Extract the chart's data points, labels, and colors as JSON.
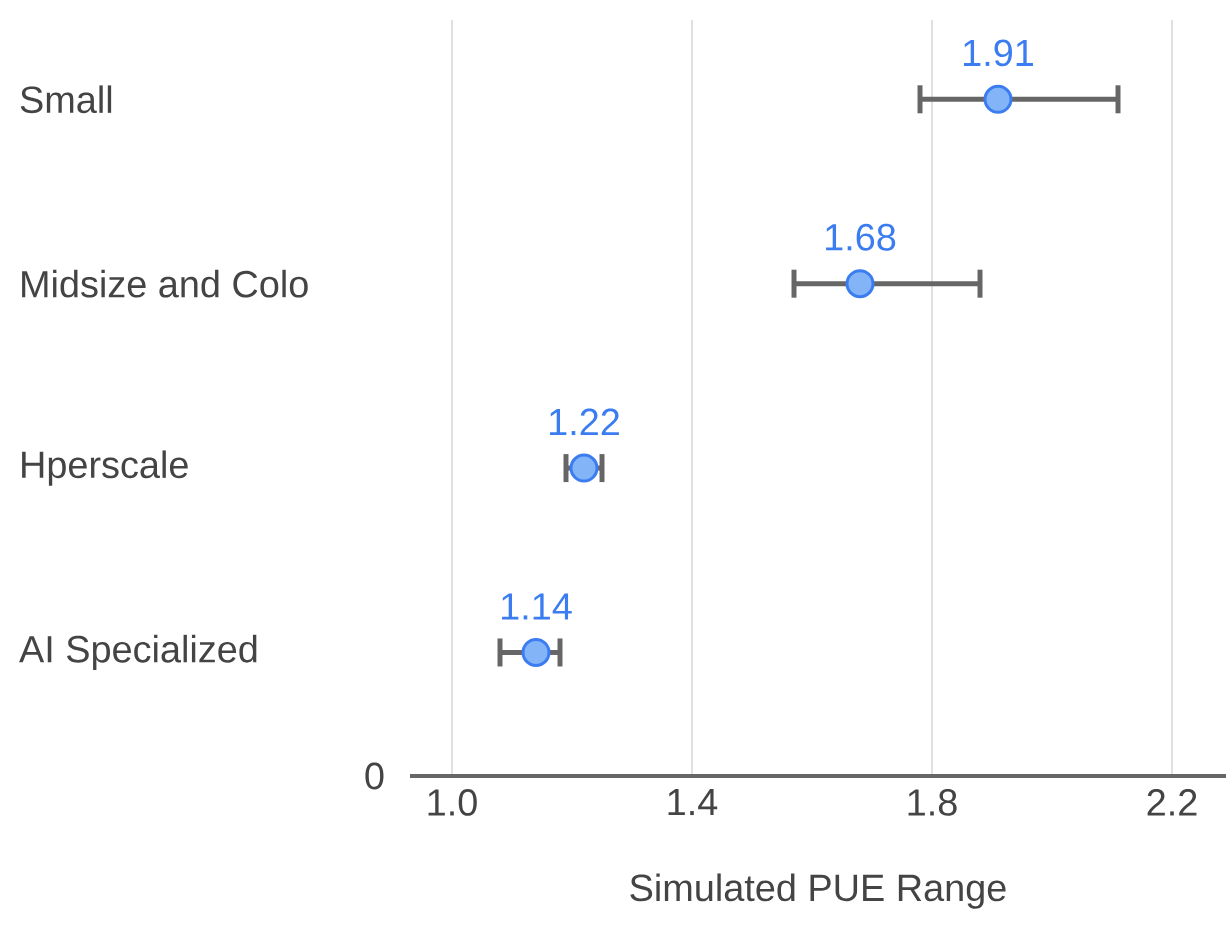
{
  "chart_data": {
    "type": "scatter",
    "orientation": "horizontal",
    "xlabel": "Simulated PUE Range",
    "categories": [
      "Small",
      "Midsize and Colo",
      "Hperscale",
      "AI Specialized"
    ],
    "values": [
      1.91,
      1.68,
      1.22,
      1.14
    ],
    "errors": [
      [
        1.78,
        2.11
      ],
      [
        1.57,
        1.88
      ],
      [
        1.19,
        1.25
      ],
      [
        1.08,
        1.18
      ]
    ],
    "color": "#82b4f7",
    "data_labels": true,
    "grid": "x",
    "xlim": [
      0.93,
      2.29
    ],
    "xticks": [
      {
        "value": 1.0,
        "label": "1.0"
      },
      {
        "value": 1.4,
        "label": "1.4"
      },
      {
        "value": 1.8,
        "label": "1.8"
      },
      {
        "value": 2.2,
        "label": "2.2"
      }
    ],
    "annotations": [
      "0"
    ]
  }
}
